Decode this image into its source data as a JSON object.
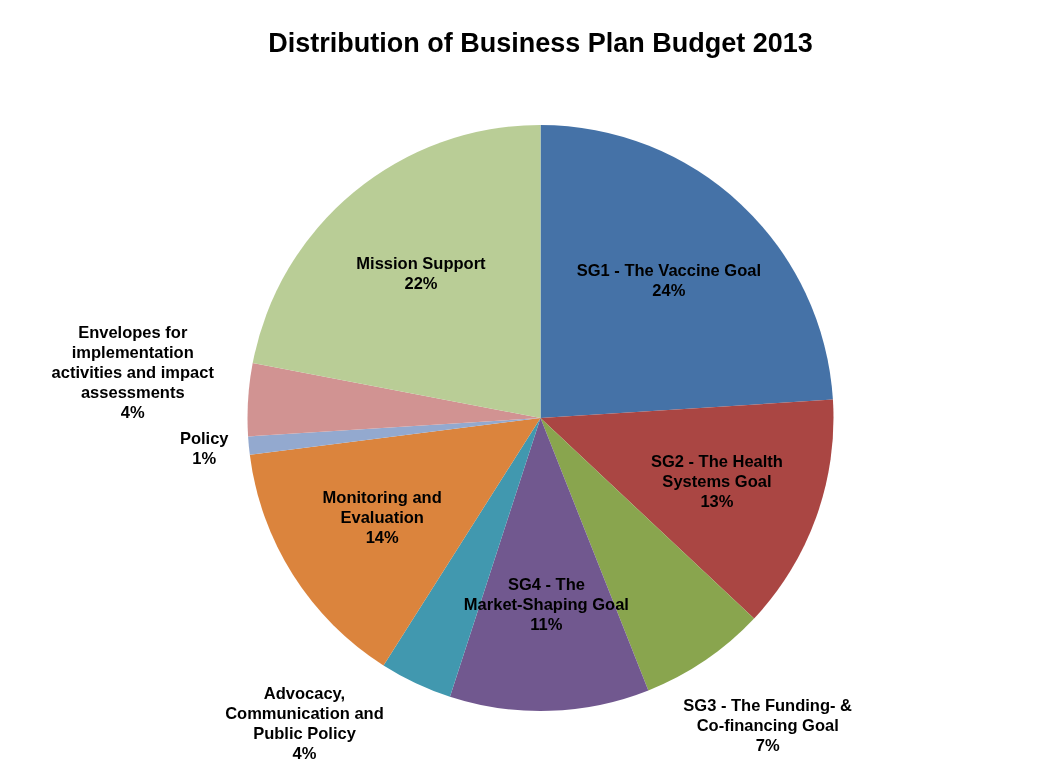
{
  "chart_data": {
    "type": "pie",
    "title": "Distribution of Business Plan Budget 2013",
    "categories": [
      "SG1 - The Vaccine Goal",
      "SG2 - The Health Systems Goal",
      "SG3 - The Funding- & Co-financing Goal",
      "SG4 - The Market-Shaping Goal",
      "Advocacy, Communication and Public Policy",
      "Monitoring and Evaluation",
      "Policy",
      "Envelopes for implementation activities and impact assessments",
      "Mission Support"
    ],
    "values": [
      24,
      13,
      7,
      11,
      4,
      14,
      1,
      4,
      22
    ],
    "value_labels": [
      "24%",
      "13%",
      "7%",
      "11%",
      "4%",
      "14%",
      "1%",
      "4%",
      "22%"
    ],
    "colors": [
      "#4572a7",
      "#aa4643",
      "#89a54e",
      "#71588f",
      "#4198af",
      "#db843d",
      "#93a9cf",
      "#d19392",
      "#b9cd96"
    ],
    "legend": false
  }
}
